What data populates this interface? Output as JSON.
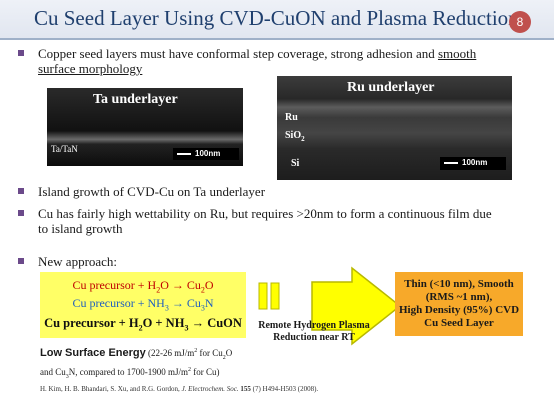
{
  "title": "Cu Seed Layer Using CVD-CuON and Plasma Reduction",
  "slide_number": "8",
  "bullets": {
    "b1_part1": "Copper seed layers must have conformal step coverage, strong adhesion and ",
    "b1_underline1": "smooth",
    "b1_underline2": "surface morphology",
    "b2": "Island growth of CVD-Cu on Ta underlayer",
    "b3_line1": "Cu has fairly high wettability on Ru, but requires >20nm to form a continuous film due",
    "b3_line2": "to island growth",
    "b4": "New approach:"
  },
  "images": {
    "ta": {
      "title": "Ta underlayer",
      "layer": "Ta/TaN",
      "scale": "100nm"
    },
    "ru": {
      "title": "Ru underlayer",
      "layer1": "Ru",
      "layer2": "SiO",
      "layer2_sub": "2",
      "layer3": "Si",
      "scale": "100nm"
    }
  },
  "approach": {
    "eq1": {
      "pre": "Cu precursor + H",
      "sub1": "2",
      "mid": "O → Cu",
      "sub2": "2",
      "post": "O"
    },
    "eq2": {
      "pre": "Cu precursor + NH",
      "sub1": "3",
      "mid": " → Cu",
      "sub2": "3",
      "post": "N"
    },
    "eq3": {
      "pre": "Cu precursor + H",
      "sub1": "2",
      "mid": "O + NH",
      "sub2": "3",
      "post": " → CuON"
    },
    "remote_line1": "Remote Hydrogen Plasma",
    "remote_line2": "Reduction near RT",
    "result_lines": [
      "Thin (<10 nm), Smooth",
      "(RMS ~1 nm),",
      "High Density (95%) CVD",
      "Cu Seed Layer"
    ]
  },
  "low_energy": {
    "label": "Low Surface Energy",
    "detail1": " (22-26 mJ/m",
    "sup1": "2",
    "detail2": " for Cu",
    "sub1": "2",
    "detail3": "O",
    "line2_a": "and Cu",
    "sub2": "3",
    "line2_b": "N, compared to 1700-1900 mJ/m",
    "sup2": "2",
    "line2_c": " for Cu)"
  },
  "reference": {
    "authors": "H. Kim, H. B. Bhandari, S. Xu, and R.G. Gordon, ",
    "journal": "J. Electrochem. Soc.",
    "volume": "155",
    "rest": " (7) H494-H503 (2008)."
  },
  "colors": {
    "title": "#1f3f6e",
    "bullet": "#6b4a8a",
    "slide_num_bg": "#c0504d",
    "yellow_box": "#ffff66",
    "arrow": "#ffff00",
    "orange_box": "#f7a92a",
    "red_eq": "#c00000",
    "blue_eq": "#1f5fbf"
  }
}
